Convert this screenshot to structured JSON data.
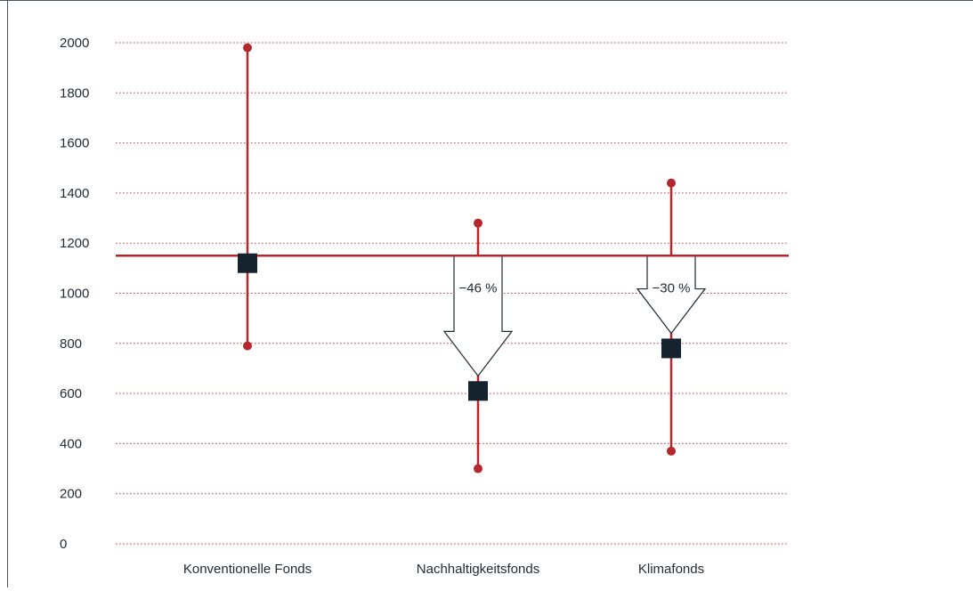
{
  "chart_data": {
    "type": "range",
    "title": "",
    "xlabel": "",
    "ylabel": "",
    "ylim": [
      0,
      2000
    ],
    "yticks": [
      0,
      200,
      400,
      600,
      800,
      1000,
      1200,
      1400,
      1600,
      1800,
      2000
    ],
    "grid": true,
    "reference_line": 1150,
    "categories": [
      "Konventionelle Fonds",
      "Nachhaltigkeitsfonds",
      "Klimafonds"
    ],
    "points": [
      {
        "category": "Konventionelle Fonds",
        "min": 790,
        "max": 1980,
        "mid": 1120
      },
      {
        "category": "Nachhaltigkeitsfonds",
        "min": 300,
        "max": 1280,
        "mid": 610
      },
      {
        "category": "Klimafonds",
        "min": 370,
        "max": 1440,
        "mid": 780
      }
    ],
    "arrows": [
      {
        "category": "Nachhaltigkeitsfonds",
        "label": "−46 %",
        "from": 1150,
        "to": 670
      },
      {
        "category": "Klimafonds",
        "label": "−30 %",
        "from": 1150,
        "to": 840
      }
    ],
    "colors": {
      "range_line": "#b5272d",
      "reference_line": "#b5272d",
      "grid": "#c0393e",
      "marker": "#14232e",
      "text": "#1f2a33",
      "frame": "#4a5560"
    }
  }
}
